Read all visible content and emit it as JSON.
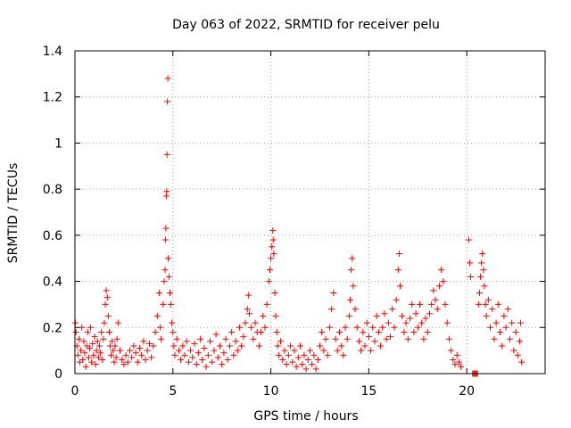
{
  "chart_data": {
    "type": "scatter",
    "title": "Day 063 of 2022, SRMTID for receiver pelu",
    "xlabel": "GPS time / hours",
    "ylabel": "SRMTID / TECUs",
    "xlim": [
      0,
      24
    ],
    "ylim": [
      0,
      1.4
    ],
    "xticks": [
      0,
      5,
      10,
      15,
      20
    ],
    "xtick_labels": [
      "0",
      "5",
      "10",
      "15",
      "20"
    ],
    "yticks": [
      0,
      0.2,
      0.4,
      0.6,
      0.8,
      1.0,
      1.2,
      1.4
    ],
    "ytick_labels": [
      "0",
      "0.2",
      "0.4",
      "0.6",
      "0.8",
      "1",
      "1.2",
      "1.4"
    ],
    "grid": true,
    "marker": "+",
    "color": "#ff0000",
    "series": [
      {
        "name": "SRMTID",
        "points": [
          [
            0.02,
            0.22
          ],
          [
            0.05,
            0.18
          ],
          [
            0.1,
            0.12
          ],
          [
            0.15,
            0.08
          ],
          [
            0.2,
            0.15
          ],
          [
            0.25,
            0.05
          ],
          [
            0.3,
            0.1
          ],
          [
            0.35,
            0.2
          ],
          [
            0.4,
            0.06
          ],
          [
            0.45,
            0.14
          ],
          [
            0.5,
            0.09
          ],
          [
            0.55,
            0.03
          ],
          [
            0.6,
            0.12
          ],
          [
            0.65,
            0.18
          ],
          [
            0.7,
            0.07
          ],
          [
            0.75,
            0.11
          ],
          [
            0.8,
            0.2
          ],
          [
            0.85,
            0.05
          ],
          [
            0.9,
            0.13
          ],
          [
            0.95,
            0.08
          ],
          [
            1.0,
            0.16
          ],
          [
            1.05,
            0.04
          ],
          [
            1.1,
            0.1
          ],
          [
            1.15,
            0.14
          ],
          [
            1.2,
            0.07
          ],
          [
            1.25,
            0.12
          ],
          [
            1.3,
            0.09
          ],
          [
            1.35,
            0.18
          ],
          [
            1.4,
            0.06
          ],
          [
            1.45,
            0.15
          ],
          [
            1.5,
            0.22
          ],
          [
            1.55,
            0.3
          ],
          [
            1.6,
            0.36
          ],
          [
            1.65,
            0.33
          ],
          [
            1.7,
            0.25
          ],
          [
            1.75,
            0.18
          ],
          [
            1.8,
            0.12
          ],
          [
            1.85,
            0.08
          ],
          [
            1.9,
            0.14
          ],
          [
            1.95,
            0.1
          ],
          [
            2.0,
            0.05
          ],
          [
            2.05,
            0.12
          ],
          [
            2.1,
            0.07
          ],
          [
            2.15,
            0.15
          ],
          [
            2.2,
            0.22
          ],
          [
            2.3,
            0.1
          ],
          [
            2.4,
            0.06
          ],
          [
            2.5,
            0.04
          ],
          [
            2.6,
            0.08
          ],
          [
            2.7,
            0.05
          ],
          [
            2.8,
            0.1
          ],
          [
            2.9,
            0.07
          ],
          [
            3.0,
            0.12
          ],
          [
            3.1,
            0.09
          ],
          [
            3.2,
            0.05
          ],
          [
            3.3,
            0.11
          ],
          [
            3.4,
            0.08
          ],
          [
            3.5,
            0.14
          ],
          [
            3.6,
            0.06
          ],
          [
            3.7,
            0.1
          ],
          [
            3.8,
            0.13
          ],
          [
            3.9,
            0.07
          ],
          [
            4.0,
            0.12
          ],
          [
            4.1,
            0.18
          ],
          [
            4.2,
            0.25
          ],
          [
            4.3,
            0.35
          ],
          [
            4.35,
            0.2
          ],
          [
            4.4,
            0.15
          ],
          [
            4.5,
            0.3
          ],
          [
            4.55,
            0.4
          ],
          [
            4.6,
            0.45
          ],
          [
            4.62,
            0.58
          ],
          [
            4.64,
            0.63
          ],
          [
            4.66,
            0.77
          ],
          [
            4.68,
            0.79
          ],
          [
            4.7,
            0.95
          ],
          [
            4.72,
            1.18
          ],
          [
            4.74,
            1.28
          ],
          [
            4.76,
            0.5
          ],
          [
            4.8,
            0.42
          ],
          [
            4.85,
            0.35
          ],
          [
            4.9,
            0.3
          ],
          [
            4.95,
            0.22
          ],
          [
            5.0,
            0.18
          ],
          [
            5.05,
            0.12
          ],
          [
            5.1,
            0.08
          ],
          [
            5.2,
            0.15
          ],
          [
            5.3,
            0.1
          ],
          [
            5.4,
            0.06
          ],
          [
            5.5,
            0.12
          ],
          [
            5.6,
            0.08
          ],
          [
            5.7,
            0.14
          ],
          [
            5.8,
            0.05
          ],
          [
            5.9,
            0.1
          ],
          [
            6.0,
            0.07
          ],
          [
            6.1,
            0.13
          ],
          [
            6.2,
            0.04
          ],
          [
            6.3,
            0.09
          ],
          [
            6.4,
            0.15
          ],
          [
            6.5,
            0.06
          ],
          [
            6.6,
            0.11
          ],
          [
            6.7,
            0.03
          ],
          [
            6.8,
            0.08
          ],
          [
            6.9,
            0.14
          ],
          [
            7.0,
            0.05
          ],
          [
            7.1,
            0.1
          ],
          [
            7.2,
            0.17
          ],
          [
            7.3,
            0.07
          ],
          [
            7.4,
            0.12
          ],
          [
            7.5,
            0.04
          ],
          [
            7.6,
            0.09
          ],
          [
            7.7,
            0.15
          ],
          [
            7.8,
            0.06
          ],
          [
            7.9,
            0.12
          ],
          [
            8.0,
            0.18
          ],
          [
            8.1,
            0.08
          ],
          [
            8.2,
            0.14
          ],
          [
            8.3,
            0.1
          ],
          [
            8.4,
            0.2
          ],
          [
            8.5,
            0.12
          ],
          [
            8.6,
            0.16
          ],
          [
            8.7,
            0.22
          ],
          [
            8.8,
            0.28
          ],
          [
            8.85,
            0.34
          ],
          [
            8.9,
            0.26
          ],
          [
            9.0,
            0.2
          ],
          [
            9.1,
            0.15
          ],
          [
            9.2,
            0.22
          ],
          [
            9.3,
            0.18
          ],
          [
            9.4,
            0.12
          ],
          [
            9.5,
            0.18
          ],
          [
            9.6,
            0.25
          ],
          [
            9.7,
            0.2
          ],
          [
            9.8,
            0.3
          ],
          [
            9.9,
            0.4
          ],
          [
            9.95,
            0.45
          ],
          [
            10.0,
            0.5
          ],
          [
            10.05,
            0.55
          ],
          [
            10.1,
            0.62
          ],
          [
            10.12,
            0.58
          ],
          [
            10.15,
            0.52
          ],
          [
            10.2,
            0.35
          ],
          [
            10.25,
            0.25
          ],
          [
            10.3,
            0.18
          ],
          [
            10.35,
            0.12
          ],
          [
            10.4,
            0.08
          ],
          [
            10.5,
            0.14
          ],
          [
            10.6,
            0.06
          ],
          [
            10.7,
            0.1
          ],
          [
            10.8,
            0.04
          ],
          [
            10.9,
            0.08
          ],
          [
            11.0,
            0.12
          ],
          [
            11.1,
            0.05
          ],
          [
            11.2,
            0.1
          ],
          [
            11.3,
            0.03
          ],
          [
            11.4,
            0.07
          ],
          [
            11.5,
            0.12
          ],
          [
            11.6,
            0.04
          ],
          [
            11.7,
            0.08
          ],
          [
            11.8,
            0.02
          ],
          [
            11.9,
            0.06
          ],
          [
            12.0,
            0.1
          ],
          [
            12.1,
            0.04
          ],
          [
            12.2,
            0.08
          ],
          [
            12.3,
            0.02
          ],
          [
            12.4,
            0.06
          ],
          [
            12.5,
            0.12
          ],
          [
            12.6,
            0.18
          ],
          [
            12.7,
            0.1
          ],
          [
            12.8,
            0.15
          ],
          [
            12.9,
            0.08
          ],
          [
            13.0,
            0.2
          ],
          [
            13.1,
            0.28
          ],
          [
            13.2,
            0.35
          ],
          [
            13.3,
            0.15
          ],
          [
            13.4,
            0.1
          ],
          [
            13.5,
            0.18
          ],
          [
            13.6,
            0.12
          ],
          [
            13.7,
            0.08
          ],
          [
            13.8,
            0.2
          ],
          [
            13.9,
            0.15
          ],
          [
            14.0,
            0.25
          ],
          [
            14.05,
            0.32
          ],
          [
            14.1,
            0.45
          ],
          [
            14.15,
            0.5
          ],
          [
            14.2,
            0.38
          ],
          [
            14.3,
            0.28
          ],
          [
            14.4,
            0.2
          ],
          [
            14.5,
            0.14
          ],
          [
            14.6,
            0.1
          ],
          [
            14.7,
            0.18
          ],
          [
            14.8,
            0.12
          ],
          [
            14.9,
            0.22
          ],
          [
            15.0,
            0.16
          ],
          [
            15.1,
            0.1
          ],
          [
            15.2,
            0.2
          ],
          [
            15.3,
            0.14
          ],
          [
            15.4,
            0.25
          ],
          [
            15.5,
            0.18
          ],
          [
            15.6,
            0.12
          ],
          [
            15.7,
            0.2
          ],
          [
            15.8,
            0.26
          ],
          [
            15.9,
            0.15
          ],
          [
            16.0,
            0.22
          ],
          [
            16.1,
            0.16
          ],
          [
            16.2,
            0.28
          ],
          [
            16.3,
            0.2
          ],
          [
            16.4,
            0.32
          ],
          [
            16.5,
            0.45
          ],
          [
            16.55,
            0.52
          ],
          [
            16.6,
            0.38
          ],
          [
            16.7,
            0.25
          ],
          [
            16.8,
            0.18
          ],
          [
            16.9,
            0.22
          ],
          [
            17.0,
            0.15
          ],
          [
            17.1,
            0.24
          ],
          [
            17.2,
            0.3
          ],
          [
            17.3,
            0.18
          ],
          [
            17.4,
            0.26
          ],
          [
            17.5,
            0.2
          ],
          [
            17.6,
            0.3
          ],
          [
            17.7,
            0.22
          ],
          [
            17.8,
            0.15
          ],
          [
            17.9,
            0.24
          ],
          [
            18.0,
            0.18
          ],
          [
            18.1,
            0.26
          ],
          [
            18.2,
            0.3
          ],
          [
            18.3,
            0.36
          ],
          [
            18.4,
            0.32
          ],
          [
            18.5,
            0.28
          ],
          [
            18.6,
            0.38
          ],
          [
            18.7,
            0.45
          ],
          [
            18.8,
            0.4
          ],
          [
            18.9,
            0.3
          ],
          [
            19.0,
            0.22
          ],
          [
            19.1,
            0.15
          ],
          [
            19.2,
            0.1
          ],
          [
            19.3,
            0.06
          ],
          [
            19.4,
            0.04
          ],
          [
            19.5,
            0.08
          ],
          [
            19.6,
            0.05
          ],
          [
            19.7,
            0.03
          ],
          [
            20.1,
            0.58
          ],
          [
            20.15,
            0.48
          ],
          [
            20.2,
            0.42
          ],
          [
            20.3,
            0.0
          ],
          [
            20.35,
            0.0
          ],
          [
            20.4,
            0.0
          ],
          [
            20.45,
            0.0
          ],
          [
            20.5,
            0.0
          ],
          [
            20.55,
            0.0
          ],
          [
            20.6,
            0.3
          ],
          [
            20.65,
            0.35
          ],
          [
            20.7,
            0.42
          ],
          [
            20.75,
            0.48
          ],
          [
            20.8,
            0.52
          ],
          [
            20.85,
            0.45
          ],
          [
            20.9,
            0.38
          ],
          [
            20.95,
            0.3
          ],
          [
            21.0,
            0.25
          ],
          [
            21.1,
            0.32
          ],
          [
            21.2,
            0.2
          ],
          [
            21.3,
            0.28
          ],
          [
            21.4,
            0.15
          ],
          [
            21.5,
            0.22
          ],
          [
            21.6,
            0.3
          ],
          [
            21.7,
            0.18
          ],
          [
            21.8,
            0.12
          ],
          [
            21.9,
            0.25
          ],
          [
            22.0,
            0.2
          ],
          [
            22.1,
            0.28
          ],
          [
            22.2,
            0.15
          ],
          [
            22.3,
            0.22
          ],
          [
            22.4,
            0.1
          ],
          [
            22.5,
            0.18
          ],
          [
            22.6,
            0.08
          ],
          [
            22.7,
            0.14
          ],
          [
            22.75,
            0.22
          ],
          [
            22.8,
            0.05
          ]
        ]
      }
    ]
  }
}
